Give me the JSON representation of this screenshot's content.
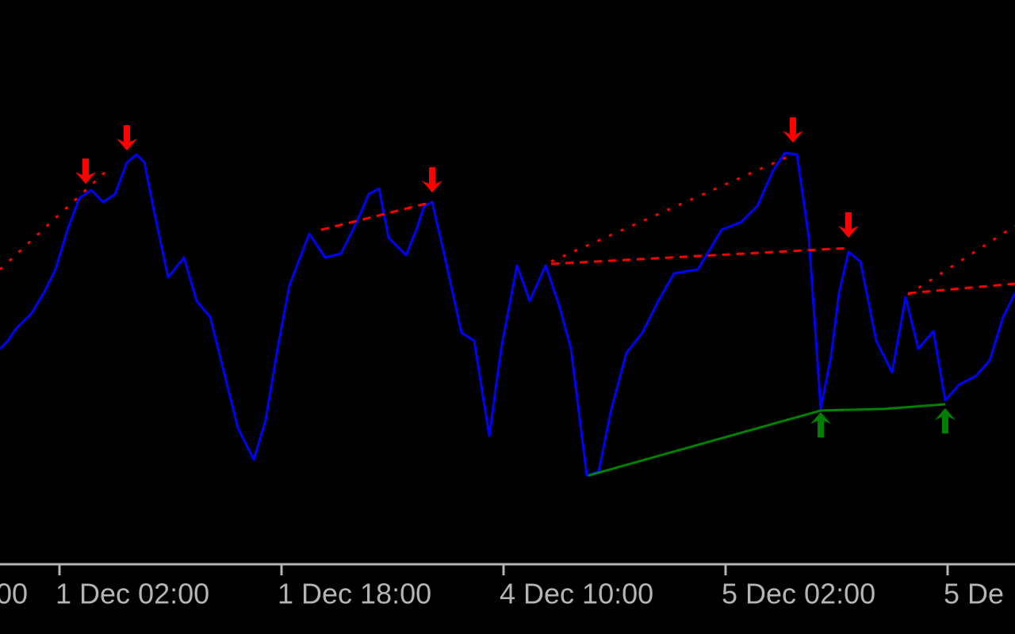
{
  "chart_data": {
    "type": "line",
    "xlim": [
      0,
      1280
    ],
    "ylim": [
      -100,
      700
    ],
    "xticks": [
      {
        "value": -205,
        "label": "00"
      },
      {
        "value": 75,
        "label": "1 Dec 02:00"
      },
      {
        "value": 355,
        "label": "1 Dec 18:00"
      },
      {
        "value": 635,
        "label": "4 Dec 10:00"
      },
      {
        "value": 915,
        "label": "5 Dec 02:00"
      },
      {
        "value": 1195,
        "label": "5 De"
      }
    ],
    "series": [
      {
        "color": "#0000ff",
        "style": "solid",
        "x": [
          0,
          10,
          20,
          40,
          55,
          70,
          85,
          100,
          115,
          130,
          145,
          160,
          172,
          182,
          195,
          212,
          232,
          248,
          265,
          280,
          300,
          320,
          335,
          350,
          365,
          390,
          410,
          430,
          450,
          465,
          478,
          490,
          512,
          525,
          535,
          545,
          560,
          582,
          598,
          617,
          632,
          652,
          668,
          688,
          705,
          720,
          740,
          755,
          770,
          790,
          810,
          830,
          850,
          880,
          910,
          935,
          955,
          975,
          990,
          1005,
          1020,
          1035,
          1048,
          1058,
          1070,
          1085,
          1105,
          1125,
          1142,
          1158,
          1177,
          1192,
          1210,
          1230,
          1248,
          1265,
          1280
        ],
        "y": [
          260,
          270,
          285,
          305,
          330,
          360,
          410,
          450,
          460,
          445,
          455,
          495,
          505,
          495,
          430,
          350,
          375,
          320,
          300,
          240,
          160,
          120,
          170,
          260,
          340,
          405,
          375,
          380,
          420,
          455,
          462,
          400,
          378,
          410,
          440,
          445,
          380,
          280,
          270,
          150,
          260,
          365,
          320,
          365,
          315,
          260,
          100,
          105,
          180,
          255,
          280,
          320,
          355,
          360,
          410,
          420,
          440,
          485,
          507,
          505,
          400,
          185,
          250,
          330,
          382,
          370,
          270,
          230,
          325,
          260,
          282,
          195,
          215,
          225,
          245,
          300,
          330
        ]
      },
      {
        "color": "#ff0000",
        "style": "dotted",
        "x": [
          0,
          135
        ],
        "y": [
          360,
          485
        ]
      },
      {
        "color": "#ff0000",
        "style": "dashed",
        "x": [
          405,
          545
        ],
        "y": [
          410,
          445
        ]
      },
      {
        "color": "#ff0000",
        "style": "dotted",
        "x": [
          695,
          1000
        ],
        "y": [
          370,
          505
        ]
      },
      {
        "color": "#ff0000",
        "style": "dashed",
        "x": [
          695,
          1070
        ],
        "y": [
          367,
          387
        ]
      },
      {
        "color": "#ff0000",
        "style": "dotted",
        "x": [
          1145,
          1280
        ],
        "y": [
          328,
          415
        ]
      },
      {
        "color": "#ff0000",
        "style": "dashed",
        "x": [
          1145,
          1280
        ],
        "y": [
          330,
          342
        ]
      },
      {
        "color": "#008000",
        "style": "solid",
        "x": [
          742,
          1035,
          1115,
          1192
        ],
        "y": [
          100,
          182,
          184,
          190
        ]
      },
      {
        "color": "#ff0000",
        "style": "arrow-down",
        "x": [
          108,
          160,
          545,
          1000,
          1070
        ],
        "y": [
          468,
          510,
          457,
          520,
          400
        ]
      },
      {
        "color": "#008000",
        "style": "arrow-up",
        "x": [
          1035,
          1192
        ],
        "y": [
          180,
          185
        ]
      }
    ]
  }
}
